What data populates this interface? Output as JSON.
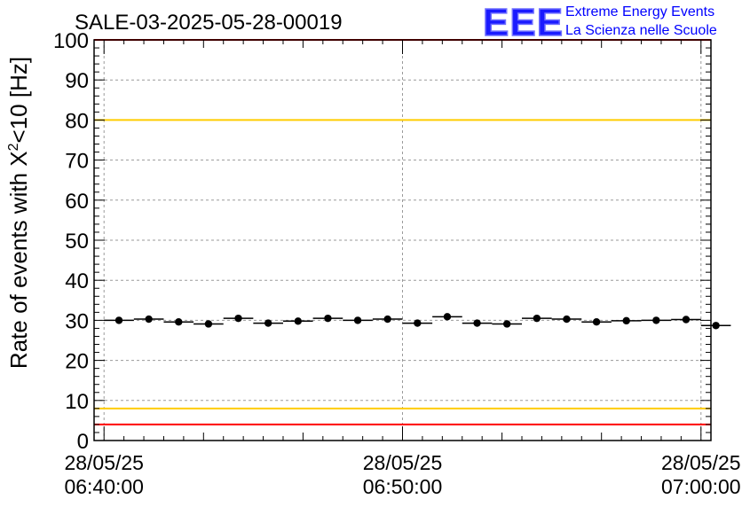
{
  "chart_data": {
    "type": "scatter",
    "title": "SALE-03-2025-05-28-00019",
    "ylabel": "Rate of events with X²<10 [Hz]",
    "ylabel_parts": {
      "main": "Rate of events with X",
      "sup": "2",
      "tail": "<10 [Hz]"
    },
    "xlabel": "",
    "ylim": [
      0,
      100
    ],
    "xlim_minutes": [
      -0.5,
      30.5
    ],
    "x_ticks": [
      {
        "minute": 0,
        "line1": "28/05/25",
        "line2": "06:40:00"
      },
      {
        "minute": 15,
        "line1": "28/05/25",
        "line2": "06:50:00"
      },
      {
        "minute": 30,
        "line1": "28/05/25",
        "line2": "07:00:00"
      }
    ],
    "y_ticks": [
      0,
      10,
      20,
      30,
      40,
      50,
      60,
      70,
      80,
      90,
      100
    ],
    "grid": true,
    "series": [
      {
        "marker": "circle",
        "x_half_width_minutes": 0.75,
        "points": [
          {
            "x": 0.75,
            "y": 30.0
          },
          {
            "x": 2.25,
            "y": 30.3
          },
          {
            "x": 3.75,
            "y": 29.6
          },
          {
            "x": 5.25,
            "y": 29.1
          },
          {
            "x": 6.75,
            "y": 30.5
          },
          {
            "x": 8.25,
            "y": 29.3
          },
          {
            "x": 9.75,
            "y": 29.8
          },
          {
            "x": 11.25,
            "y": 30.5
          },
          {
            "x": 12.75,
            "y": 30.0
          },
          {
            "x": 14.25,
            "y": 30.3
          },
          {
            "x": 15.75,
            "y": 29.3
          },
          {
            "x": 17.25,
            "y": 30.9
          },
          {
            "x": 18.75,
            "y": 29.3
          },
          {
            "x": 20.25,
            "y": 29.1
          },
          {
            "x": 21.75,
            "y": 30.5
          },
          {
            "x": 23.25,
            "y": 30.3
          },
          {
            "x": 24.75,
            "y": 29.6
          },
          {
            "x": 26.25,
            "y": 29.9
          },
          {
            "x": 27.75,
            "y": 30.0
          },
          {
            "x": 29.25,
            "y": 30.2
          },
          {
            "x": 30.75,
            "y": 28.7
          }
        ]
      }
    ],
    "reference_lines": [
      {
        "y": 100,
        "color": "#ff0000"
      },
      {
        "y": 80,
        "color": "#ffcc00"
      },
      {
        "y": 8,
        "color": "#ffcc00"
      },
      {
        "y": 4,
        "color": "#ff0000"
      }
    ]
  },
  "logo": {
    "text": "EEE",
    "line1": "Extreme Energy Events",
    "line2": "La Scienza nelle Scuole",
    "color": "#0000ff"
  }
}
